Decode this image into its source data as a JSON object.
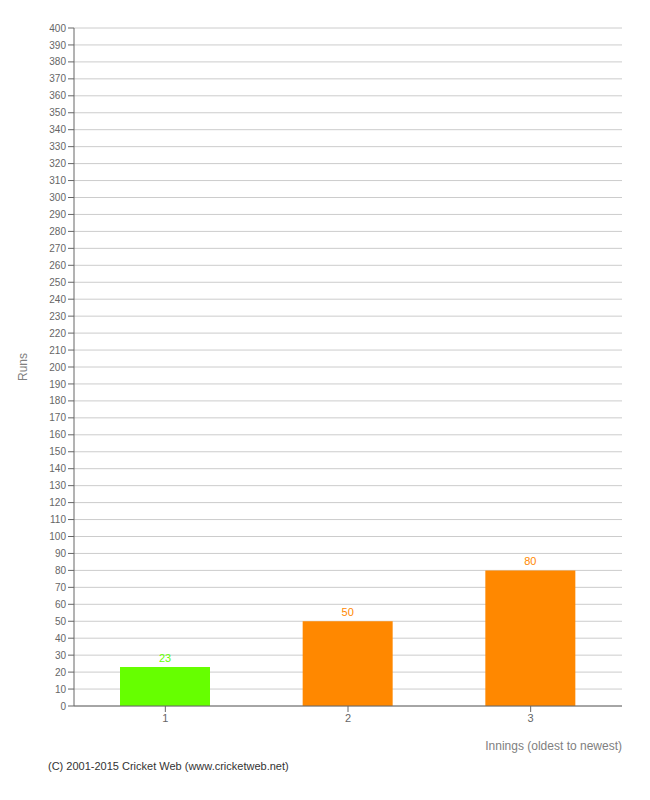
{
  "chart_data": {
    "type": "bar",
    "categories": [
      "1",
      "2",
      "3"
    ],
    "values": [
      23,
      50,
      80
    ],
    "colors": [
      "#66ff00",
      "#ff8800",
      "#ff8800"
    ],
    "xlabel": "Innings (oldest to newest)",
    "ylabel": "Runs",
    "ylim": [
      0,
      400
    ],
    "yticks": [
      0,
      10,
      20,
      30,
      40,
      50,
      60,
      70,
      80,
      90,
      100,
      110,
      120,
      130,
      140,
      150,
      160,
      170,
      180,
      190,
      200,
      210,
      220,
      230,
      240,
      250,
      260,
      270,
      280,
      290,
      300,
      310,
      320,
      330,
      340,
      350,
      360,
      370,
      380,
      390,
      400
    ],
    "grid": true,
    "data_labels": true,
    "annotations": [
      "(C) 2001-2015 Cricket Web (www.cricketweb.net)"
    ]
  }
}
